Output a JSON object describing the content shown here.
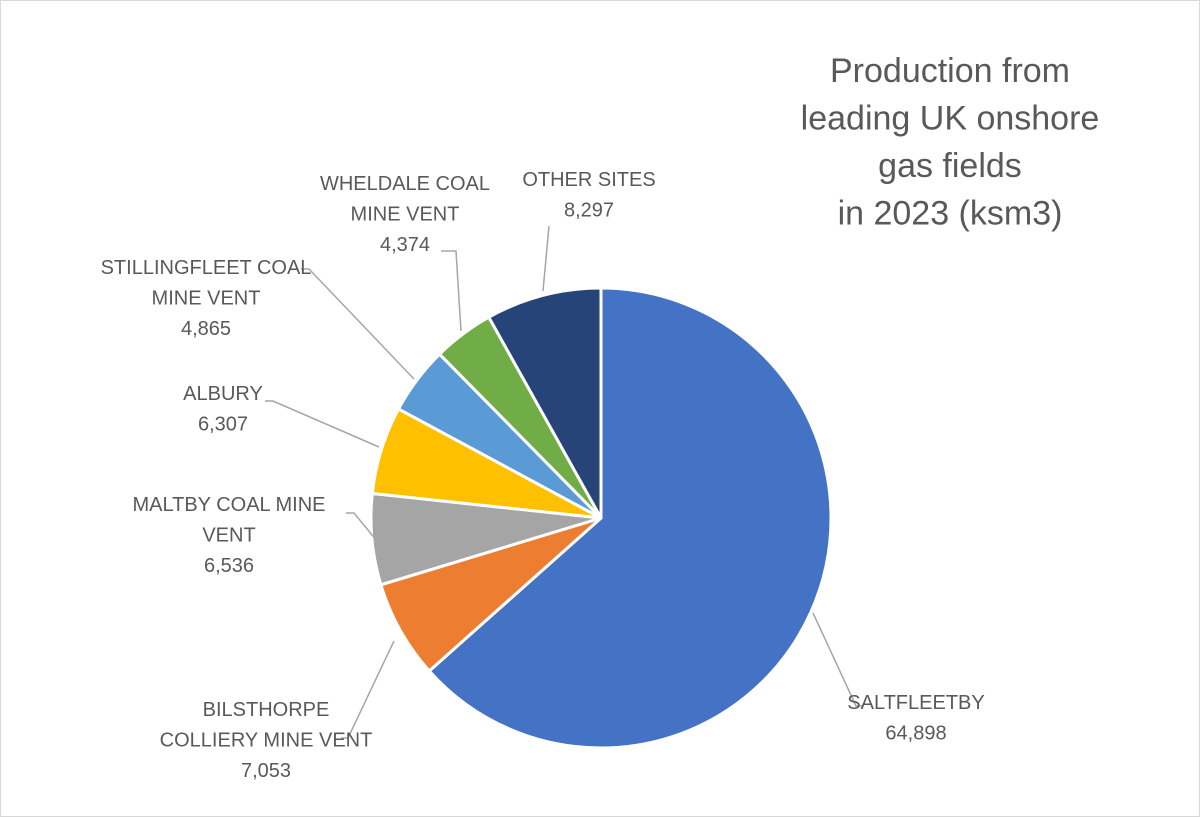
{
  "chart_data": {
    "type": "pie",
    "title_lines": [
      "Production from",
      "leading UK onshore",
      "gas fields",
      "in 2023 (ksm3)"
    ],
    "start": "top, clockwise",
    "slices": [
      {
        "name": "SALTFLEETBY",
        "label_lines": [
          "SALTFLEETBY"
        ],
        "value": 64898,
        "value_text": "64,898",
        "color": "#4472C4"
      },
      {
        "name": "BILSTHORPE COLLIERY MINE VENT",
        "label_lines": [
          "BILSTHORPE",
          "COLLIERY MINE VENT"
        ],
        "value": 7053,
        "value_text": "7,053",
        "color": "#ED7D31"
      },
      {
        "name": "MALTBY COAL MINE VENT",
        "label_lines": [
          "MALTBY COAL MINE",
          "VENT"
        ],
        "value": 6536,
        "value_text": "6,536",
        "color": "#A5A5A5"
      },
      {
        "name": "ALBURY",
        "label_lines": [
          "ALBURY"
        ],
        "value": 6307,
        "value_text": "6,307",
        "color": "#FFC000"
      },
      {
        "name": "STILLINGFLEET COAL MINE VENT",
        "label_lines": [
          "STILLINGFLEET COAL",
          "MINE VENT"
        ],
        "value": 4865,
        "value_text": "4,865",
        "color": "#5B9BD5"
      },
      {
        "name": "WHELDALE COAL MINE VENT",
        "label_lines": [
          "WHELDALE COAL",
          "MINE VENT"
        ],
        "value": 4374,
        "value_text": "4,374",
        "color": "#70AD47"
      },
      {
        "name": "OTHER SITES",
        "label_lines": [
          "OTHER SITES"
        ],
        "value": 8297,
        "value_text": "8,297",
        "color": "#264478"
      }
    ]
  }
}
